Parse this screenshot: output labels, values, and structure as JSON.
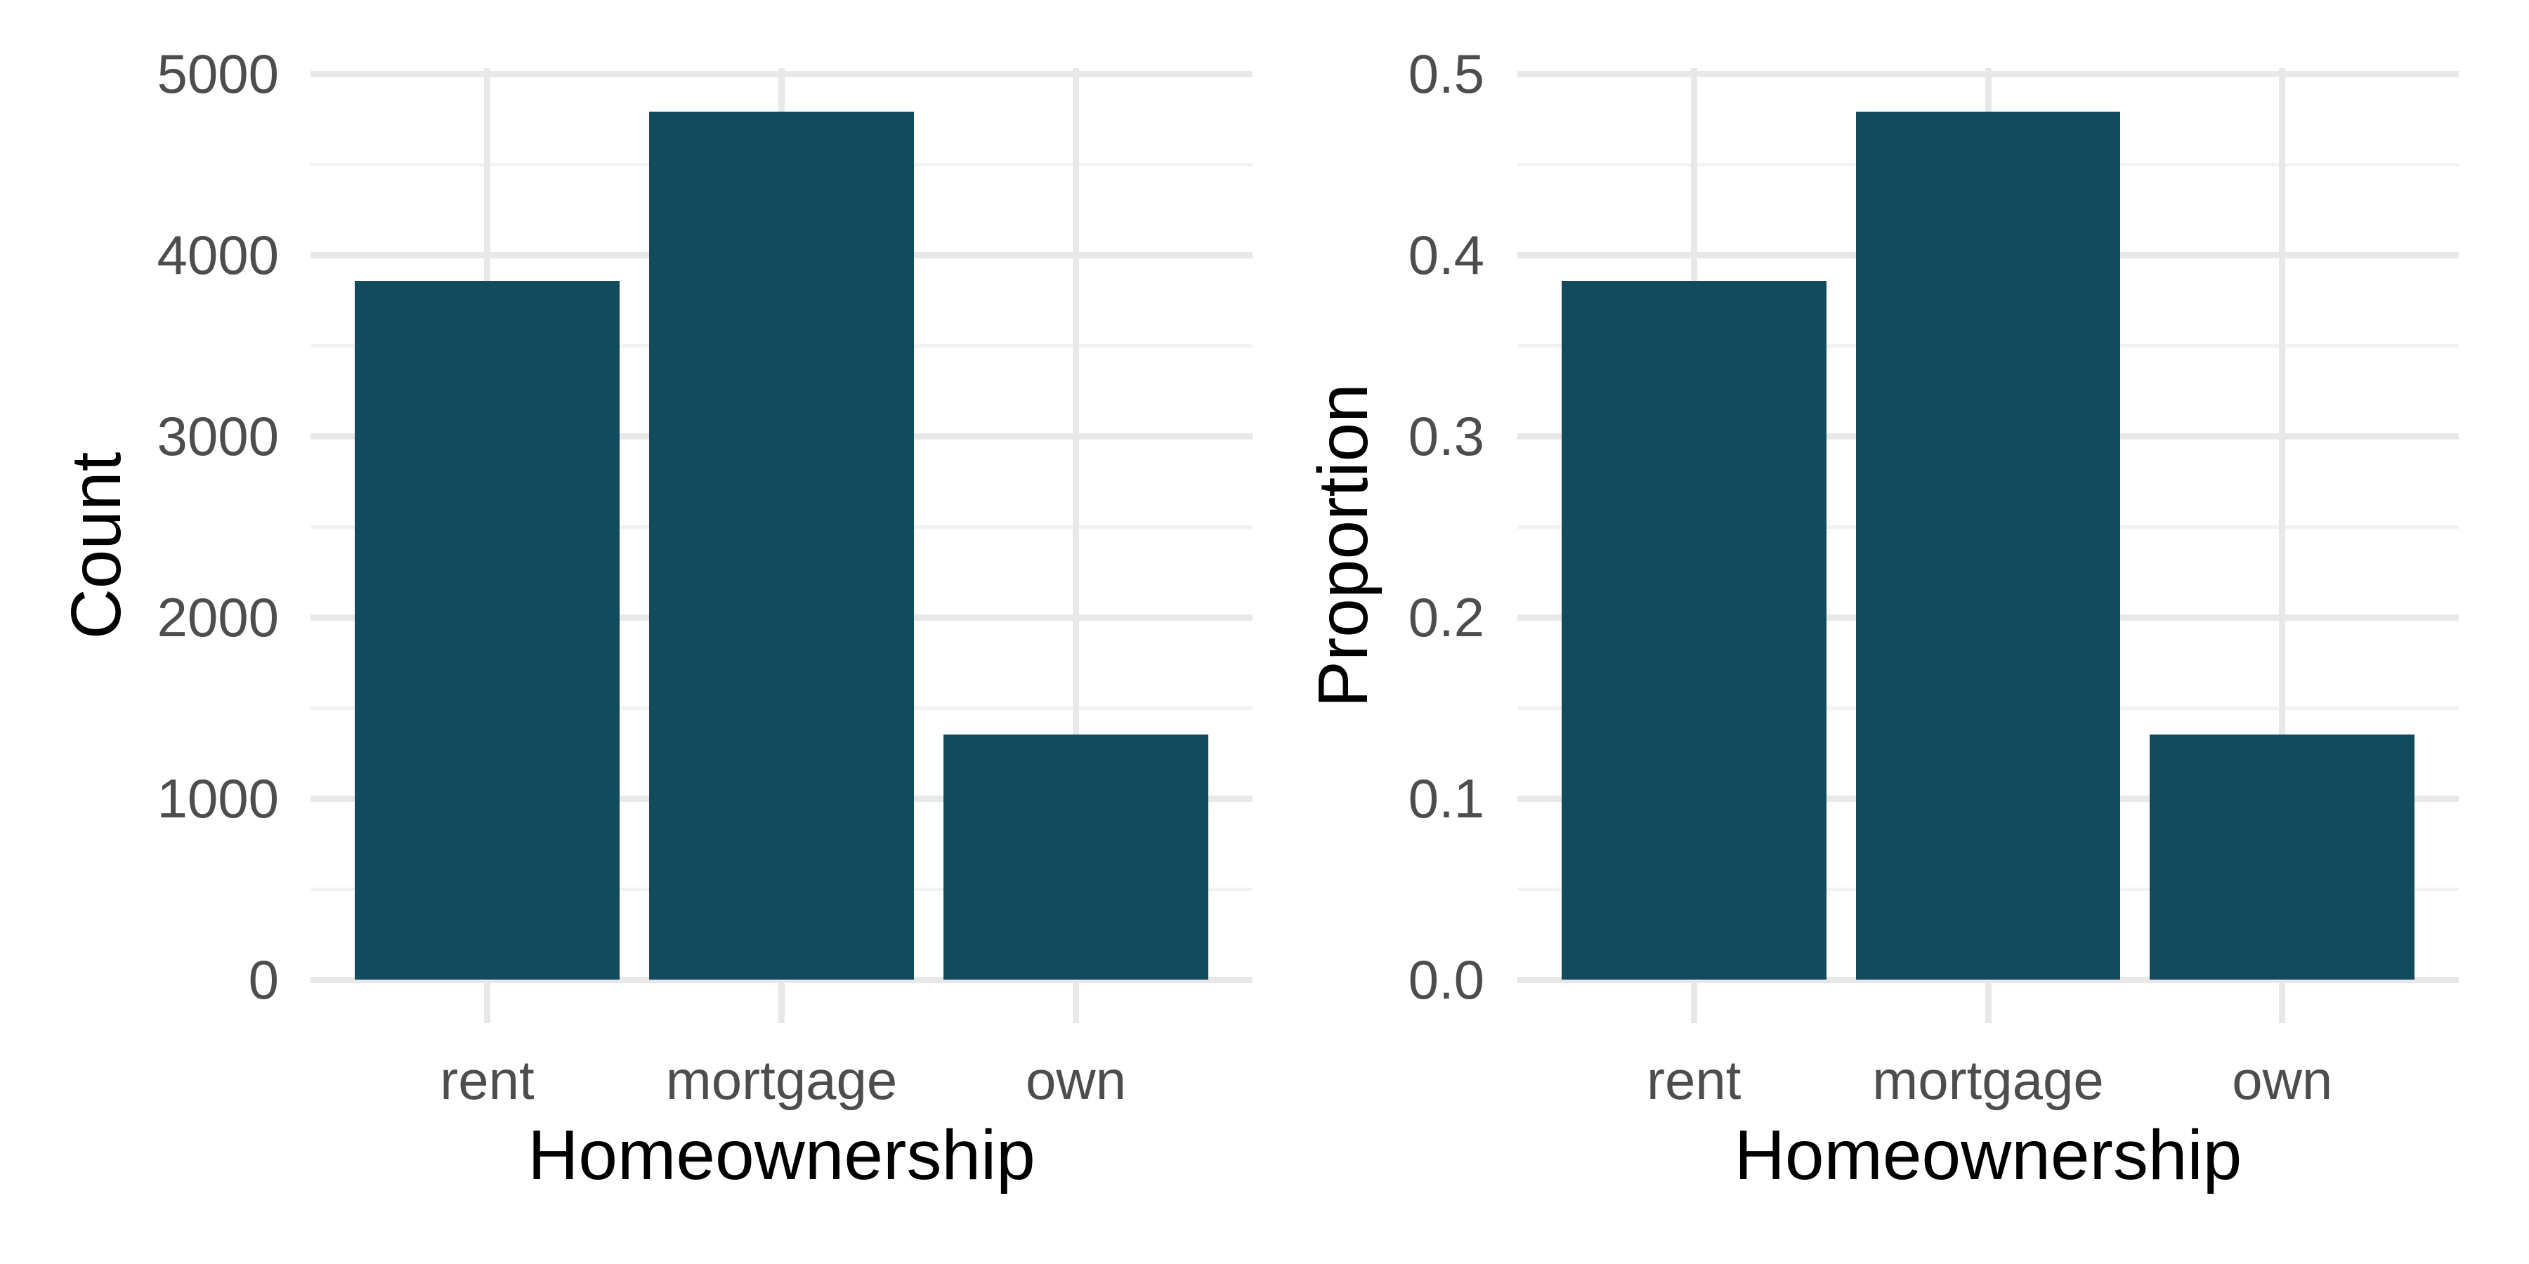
{
  "page": {
    "background": "#FFFFFF"
  },
  "colors": {
    "bar_fill": "#124A5E",
    "grid_major": "#E8E8E8",
    "grid_minor": "#F2F2F2",
    "tick_label": "#4D4D4D",
    "axis_title": "#000000"
  },
  "chart_data": [
    {
      "type": "bar",
      "panel": "left",
      "title": "",
      "xlabel": "Homeownership",
      "ylabel": "Count",
      "categories": [
        "rent",
        "mortgage",
        "own"
      ],
      "values": [
        3858,
        4789,
        1353
      ],
      "ylim": [
        0,
        5000
      ],
      "y_major_ticks": [
        0,
        1000,
        2000,
        3000,
        4000,
        5000
      ],
      "y_major_labels": [
        "0",
        "1000",
        "2000",
        "3000",
        "4000",
        "5000"
      ],
      "y_minor_ticks": [
        500,
        1500,
        2500,
        3500,
        4500
      ],
      "grid": true,
      "legend": false
    },
    {
      "type": "bar",
      "panel": "right",
      "title": "",
      "xlabel": "Homeownership",
      "ylabel": "Proportion",
      "categories": [
        "rent",
        "mortgage",
        "own"
      ],
      "values": [
        0.3858,
        0.4789,
        0.1353
      ],
      "ylim": [
        0,
        0.5
      ],
      "y_major_ticks": [
        0,
        0.1,
        0.2,
        0.3,
        0.4,
        0.5
      ],
      "y_major_labels": [
        "0.0",
        "0.1",
        "0.2",
        "0.3",
        "0.4",
        "0.5"
      ],
      "y_minor_ticks": [
        0.05,
        0.15,
        0.25,
        0.35,
        0.45
      ],
      "grid": true,
      "legend": false
    }
  ]
}
